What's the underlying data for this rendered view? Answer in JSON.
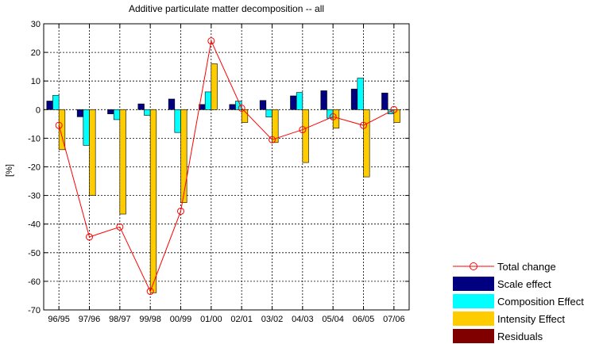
{
  "chart_data": {
    "type": "bar",
    "title": "Additive particulate matter decomposition -- all",
    "xlabel": "",
    "ylabel": "[%]",
    "ylim": [
      -70,
      30
    ],
    "yticks": [
      30,
      20,
      10,
      0,
      -10,
      -20,
      -30,
      -40,
      -50,
      -60,
      -70
    ],
    "grid": true,
    "legend_position": "bottom-right outside",
    "categories": [
      "96/95",
      "97/96",
      "98/97",
      "99/98",
      "00/99",
      "01/00",
      "02/01",
      "03/02",
      "04/03",
      "05/04",
      "06/05",
      "07/06"
    ],
    "series": [
      {
        "name": "Scale effect",
        "kind": "bar",
        "color": "#000080",
        "values": [
          3,
          -2.5,
          -1.5,
          2,
          3.7,
          1.8,
          1.8,
          3.2,
          4.8,
          6.6,
          7.2,
          5.8
        ]
      },
      {
        "name": "Composition Effect",
        "kind": "bar",
        "color": "#00FFFF",
        "values": [
          5,
          -12.5,
          -3.5,
          -2,
          -8,
          6.2,
          3,
          -2.6,
          6,
          -3,
          11,
          -1.5
        ]
      },
      {
        "name": "Intensity Effect",
        "kind": "bar",
        "color": "#FFCC00",
        "values": [
          -14,
          -30,
          -36.5,
          -64,
          -32.5,
          16,
          -4.5,
          -11.5,
          -18.5,
          -6.5,
          -23.5,
          -4.5
        ]
      },
      {
        "name": "Residuals",
        "kind": "bar",
        "color": "#800000",
        "values": [
          0,
          0,
          0,
          0,
          0,
          0,
          0,
          0,
          0,
          0,
          0,
          0
        ]
      },
      {
        "name": "Total change",
        "kind": "line",
        "color": "#FF0000",
        "marker": "circle",
        "values": [
          -5.5,
          -44.5,
          -41,
          -63.5,
          -35.5,
          24,
          0.5,
          -10.5,
          -7,
          -2.5,
          -5.5,
          0
        ]
      }
    ]
  }
}
